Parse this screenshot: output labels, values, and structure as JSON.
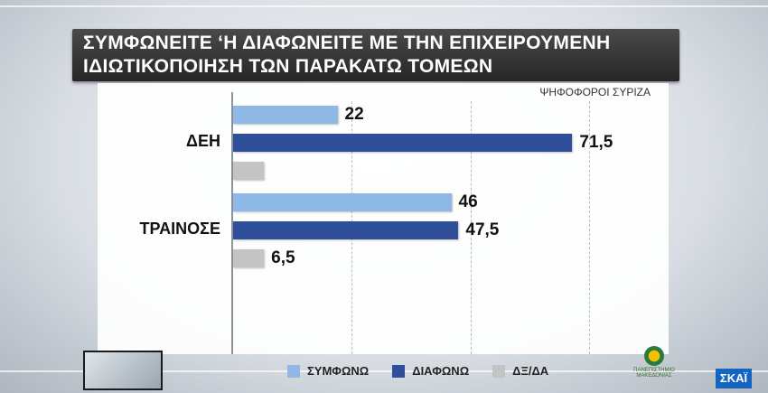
{
  "chart_data": {
    "type": "bar",
    "orientation": "horizontal",
    "title_lines": [
      "ΣΥΜΦΩΝΕΙΤΕ ‘Η ΔΙΑΦΩΝΕΙΤΕ ΜΕ ΤΗΝ ΕΠΙΧΕΙΡΟΥΜΕΝΗ",
      "ΙΔΙΩΤΙΚΟΠΟΙΗΣΗ ΤΩΝ ΠΑΡΑΚΑΤΩ ΤΟΜΕΩΝ"
    ],
    "subtitle": "ΨΗΦΟΦΟΡΟΙ ΣΥΡΙΖΑ",
    "categories": [
      "ΔΕΗ",
      "ΤΡΑΙΝΟΣΕ"
    ],
    "series": [
      {
        "name": "ΣΥΜΦΩΝΩ",
        "color": "#8fb8e6",
        "values": [
          22,
          46
        ],
        "labels": [
          "22",
          "46"
        ]
      },
      {
        "name": "ΔΙΑΦΩΝΩ",
        "color": "#2f4f9a",
        "values": [
          71.5,
          47.5
        ],
        "labels": [
          "71,5",
          "47,5"
        ]
      },
      {
        "name": "ΔΞ/ΔΑ",
        "color": "#c4c4c4",
        "values": [
          6.5,
          6.5
        ],
        "labels": [
          "",
          "6,5"
        ]
      }
    ],
    "xlim": [
      0,
      100
    ],
    "grid": true,
    "legend_position": "bottom"
  },
  "branding": {
    "sponsor_text": "ΠΑΝΕΠΙΣΤΗΜΙΟ ΜΑΚΕΔΟΝΙΑΣ",
    "channel": "ΣΚΑΪ"
  }
}
